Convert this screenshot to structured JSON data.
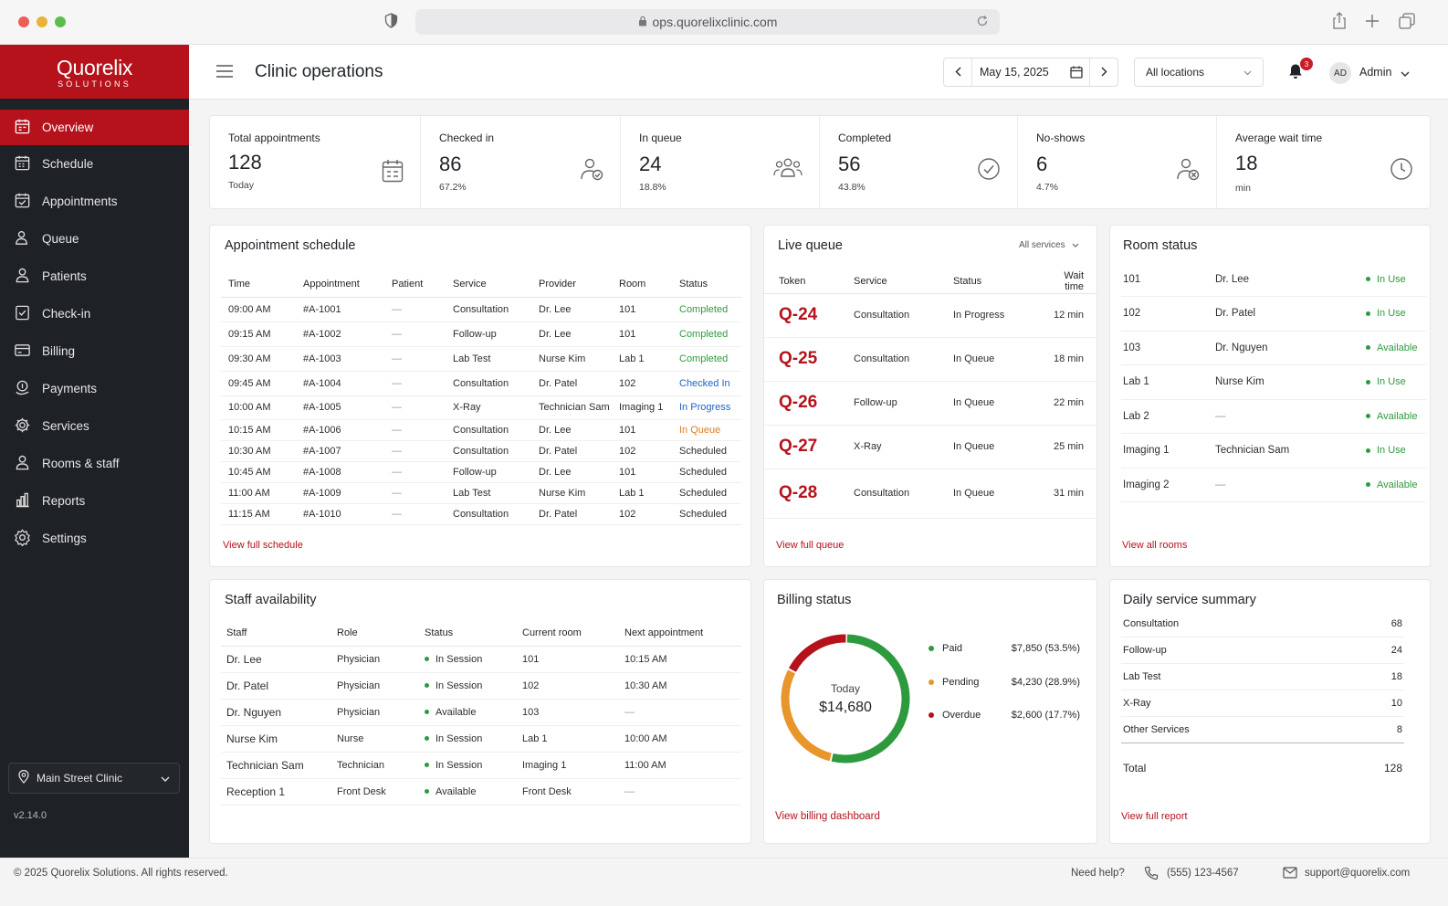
{
  "browser": {
    "url": "ops.quorelixclinic.com"
  },
  "brand": {
    "name": "Quorelix",
    "tagline": "SOLUTIONS",
    "color": "#b5121b"
  },
  "sidebar": {
    "items": [
      {
        "label": "Overview",
        "icon": "calendar-icon",
        "active": true
      },
      {
        "label": "Schedule",
        "icon": "calendar-icon"
      },
      {
        "label": "Appointments",
        "icon": "calendar-check-icon"
      },
      {
        "label": "Queue",
        "icon": "people-queue-icon"
      },
      {
        "label": "Patients",
        "icon": "person-icon"
      },
      {
        "label": "Check-in",
        "icon": "checkin-icon"
      },
      {
        "label": "Billing",
        "icon": "billing-icon"
      },
      {
        "label": "Payments",
        "icon": "payments-icon"
      },
      {
        "label": "Services",
        "icon": "gear-icon"
      },
      {
        "label": "Rooms & staff",
        "icon": "person-icon"
      },
      {
        "label": "Reports",
        "icon": "bar-chart-icon"
      },
      {
        "label": "Settings",
        "icon": "settings-icon"
      }
    ],
    "clinic": "Main Street Clinic",
    "version": "v2.14.0"
  },
  "header": {
    "title": "Clinic operations",
    "date": "May 15, 2025",
    "location": "All locations",
    "notifications": "3",
    "avatar": "AD",
    "user": "Admin"
  },
  "stats": [
    {
      "label": "Total appointments",
      "value": "128",
      "sub": "Today",
      "icon": "calendar-icon"
    },
    {
      "label": "Checked in",
      "value": "86",
      "sub": "67.2%",
      "icon": "person-check-icon"
    },
    {
      "label": "In queue",
      "value": "24",
      "sub": "18.8%",
      "icon": "group-icon"
    },
    {
      "label": "Completed",
      "value": "56",
      "sub": "43.8%",
      "icon": "check-circle-icon"
    },
    {
      "label": "No-shows",
      "value": "6",
      "sub": "4.7%",
      "icon": "person-x-icon"
    },
    {
      "label": "Average wait time",
      "value": "18",
      "sub": "min",
      "icon": "clock-icon"
    }
  ],
  "schedule": {
    "title": "Appointment schedule",
    "columns": [
      "Time",
      "Appointment",
      "Patient",
      "Service",
      "Provider",
      "Room",
      "Status"
    ],
    "rows": [
      [
        "09:00 AM",
        "#A-1001",
        "—",
        "Consultation",
        "Dr. Lee",
        "101",
        "Completed"
      ],
      [
        "09:15 AM",
        "#A-1002",
        "—",
        "Follow-up",
        "Dr. Lee",
        "101",
        "Completed"
      ],
      [
        "09:30 AM",
        "#A-1003",
        "—",
        "Lab Test",
        "Nurse Kim",
        "Lab 1",
        "Completed"
      ],
      [
        "09:45 AM",
        "#A-1004",
        "—",
        "Consultation",
        "Dr. Patel",
        "102",
        "Checked In"
      ],
      [
        "10:00 AM",
        "#A-1005",
        "—",
        "X-Ray",
        "Technician Sam",
        "Imaging 1",
        "In Progress"
      ],
      [
        "10:15 AM",
        "#A-1006",
        "—",
        "Consultation",
        "Dr. Lee",
        "101",
        "In Queue"
      ],
      [
        "10:30 AM",
        "#A-1007",
        "—",
        "Consultation",
        "Dr. Patel",
        "102",
        "Scheduled"
      ],
      [
        "10:45 AM",
        "#A-1008",
        "—",
        "Follow-up",
        "Dr. Lee",
        "101",
        "Scheduled"
      ],
      [
        "11:00 AM",
        "#A-1009",
        "—",
        "Lab Test",
        "Nurse Kim",
        "Lab 1",
        "Scheduled"
      ],
      [
        "11:15 AM",
        "#A-1010",
        "—",
        "Consultation",
        "Dr. Patel",
        "102",
        "Scheduled"
      ]
    ],
    "link": "View full schedule"
  },
  "queue": {
    "title": "Live queue",
    "filter": "All services",
    "columns": [
      "Token",
      "Service",
      "Status",
      "Wait time"
    ],
    "rows": [
      [
        "Q-24",
        "Consultation",
        "In Progress",
        "12 min"
      ],
      [
        "Q-25",
        "Consultation",
        "In Queue",
        "18 min"
      ],
      [
        "Q-26",
        "Follow-up",
        "In Queue",
        "22 min"
      ],
      [
        "Q-27",
        "X-Ray",
        "In Queue",
        "25 min"
      ],
      [
        "Q-28",
        "Consultation",
        "In Queue",
        "31 min"
      ]
    ],
    "link": "View full queue"
  },
  "rooms": {
    "title": "Room status",
    "rows": [
      [
        "101",
        "Dr. Lee",
        "In Use"
      ],
      [
        "102",
        "Dr. Patel",
        "In Use"
      ],
      [
        "103",
        "Dr. Nguyen",
        "Available"
      ],
      [
        "Lab 1",
        "Nurse Kim",
        "In Use"
      ],
      [
        "Lab 2",
        "—",
        "Available"
      ],
      [
        "Imaging 1",
        "Technician Sam",
        "In Use"
      ],
      [
        "Imaging 2",
        "—",
        "Available"
      ]
    ],
    "link": "View all rooms"
  },
  "staff": {
    "title": "Staff availability",
    "columns": [
      "Staff",
      "Role",
      "Status",
      "Current room",
      "Next appointment"
    ],
    "rows": [
      [
        "Dr. Lee",
        "Physician",
        "In Session",
        "101",
        "10:15 AM"
      ],
      [
        "Dr. Patel",
        "Physician",
        "In Session",
        "102",
        "10:30 AM"
      ],
      [
        "Dr. Nguyen",
        "Physician",
        "Available",
        "103",
        "—"
      ],
      [
        "Nurse Kim",
        "Nurse",
        "In Session",
        "Lab 1",
        "10:00 AM"
      ],
      [
        "Technician Sam",
        "Technician",
        "In Session",
        "Imaging 1",
        "11:00 AM"
      ],
      [
        "Reception 1",
        "Front Desk",
        "Available",
        "Front Desk",
        "—"
      ]
    ]
  },
  "billing": {
    "title": "Billing status",
    "center_label": "Today",
    "center_value": "$14,680",
    "items": [
      {
        "label": "Paid",
        "amount": "$7,850 (53.5%)",
        "fraction": 0.535,
        "color": "#2e9a3e"
      },
      {
        "label": "Pending",
        "amount": "$4,230 (28.9%)",
        "fraction": 0.289,
        "color": "#e8952b"
      },
      {
        "label": "Overdue",
        "amount": "$2,600 (17.7%)",
        "fraction": 0.177,
        "color": "#b5121b"
      }
    ],
    "link": "View billing dashboard"
  },
  "summary": {
    "title": "Daily service summary",
    "rows": [
      [
        "Consultation",
        "68"
      ],
      [
        "Follow-up",
        "24"
      ],
      [
        "Lab Test",
        "18"
      ],
      [
        "X-Ray",
        "10"
      ],
      [
        "Other Services",
        "8"
      ]
    ],
    "total_label": "Total",
    "total_value": "128",
    "link": "View full report"
  },
  "footer": {
    "copyright": "© 2025 Quorelix Solutions. All rights reserved.",
    "help": "Need help?",
    "phone": "(555) 123-4567",
    "email": "support@quorelix.com"
  }
}
